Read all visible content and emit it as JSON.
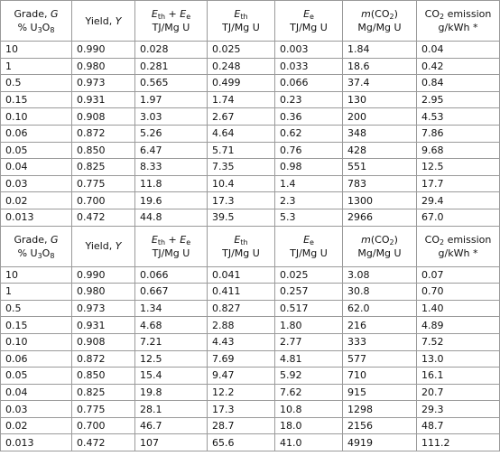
{
  "tables": [
    {
      "header": [
        {
          "lines": [
            [
              {
                "text": "Grade, "
              },
              {
                "text": "G",
                "style": "italic"
              }
            ],
            [
              {
                "text": "% U"
              },
              {
                "text": "3",
                "style": "sub"
              },
              {
                "text": "O"
              },
              {
                "text": "8",
                "style": "sub"
              }
            ]
          ]
        },
        {
          "lines": [
            [
              {
                "text": "Yield, "
              },
              {
                "text": "Y",
                "style": "italic"
              }
            ]
          ]
        },
        {
          "lines": [
            [
              {
                "text": "E",
                "style": "italic"
              },
              {
                "text": "th",
                "style": "sub"
              },
              {
                "text": " + "
              },
              {
                "text": "E",
                "style": "italic"
              },
              {
                "text": "e",
                "style": "sub"
              }
            ],
            [
              {
                "text": "TJ/Mg U"
              }
            ]
          ]
        },
        {
          "lines": [
            [
              {
                "text": "E",
                "style": "italic"
              },
              {
                "text": "th",
                "style": "sub"
              }
            ],
            [
              {
                "text": "TJ/Mg U"
              }
            ]
          ]
        },
        {
          "lines": [
            [
              {
                "text": "E",
                "style": "italic"
              },
              {
                "text": "e",
                "style": "sub"
              }
            ],
            [
              {
                "text": "TJ/Mg U"
              }
            ]
          ]
        },
        {
          "lines": [
            [
              {
                "text": "m",
                "style": "italic"
              },
              {
                "text": "(CO"
              },
              {
                "text": "2",
                "style": "sub"
              },
              {
                "text": ")"
              }
            ],
            [
              {
                "text": "Mg/Mg U"
              }
            ]
          ]
        },
        {
          "lines": [
            [
              {
                "text": "CO"
              },
              {
                "text": "2",
                "style": "sub"
              },
              {
                "text": " emission"
              }
            ],
            [
              {
                "text": "g/kWh *"
              }
            ]
          ]
        }
      ],
      "rows": [
        [
          "10",
          "0.990",
          "0.028",
          "0.025",
          "0.003",
          "1.84",
          "0.04"
        ],
        [
          "1",
          "0.980",
          "0.281",
          "0.248",
          "0.033",
          "18.6",
          "0.42"
        ],
        [
          "0.5",
          "0.973",
          "0.565",
          "0.499",
          "0.066",
          "37.4",
          "0.84"
        ],
        [
          "0.15",
          "0.931",
          "1.97",
          "1.74",
          "0.23",
          "130",
          "2.95"
        ],
        [
          "0.10",
          "0.908",
          "3.03",
          "2.67",
          "0.36",
          "200",
          "4.53"
        ],
        [
          "0.06",
          "0.872",
          "5.26",
          "4.64",
          "0.62",
          "348",
          "7.86"
        ],
        [
          "0.05",
          "0.850",
          "6.47",
          "5.71",
          "0.76",
          "428",
          "9.68"
        ],
        [
          "0.04",
          "0.825",
          "8.33",
          "7.35",
          "0.98",
          "551",
          "12.5"
        ],
        [
          "0.03",
          "0.775",
          "11.8",
          "10.4",
          "1.4",
          "783",
          "17.7"
        ],
        [
          "0.02",
          "0.700",
          "19.6",
          "17.3",
          "2.3",
          "1300",
          "29.4"
        ],
        [
          "0.013",
          "0.472",
          "44.8",
          "39.5",
          "5.3",
          "2966",
          "67.0"
        ]
      ]
    },
    {
      "header": [
        {
          "lines": [
            [
              {
                "text": "Grade, "
              },
              {
                "text": "G",
                "style": "italic"
              }
            ],
            [
              {
                "text": "% U"
              },
              {
                "text": "3",
                "style": "sub"
              },
              {
                "text": "O"
              },
              {
                "text": "8",
                "style": "sub"
              }
            ]
          ]
        },
        {
          "lines": [
            [
              {
                "text": "Yield, "
              },
              {
                "text": "Y",
                "style": "italic"
              }
            ]
          ]
        },
        {
          "lines": [
            [
              {
                "text": "E",
                "style": "italic"
              },
              {
                "text": "th",
                "style": "sub"
              },
              {
                "text": " + "
              },
              {
                "text": "E",
                "style": "italic"
              },
              {
                "text": "e",
                "style": "sub"
              }
            ],
            [
              {
                "text": "TJ/Mg U"
              }
            ]
          ]
        },
        {
          "lines": [
            [
              {
                "text": "E",
                "style": "italic"
              },
              {
                "text": "th",
                "style": "sub"
              }
            ],
            [
              {
                "text": "TJ/Mg U"
              }
            ]
          ]
        },
        {
          "lines": [
            [
              {
                "text": "E",
                "style": "italic"
              },
              {
                "text": "e",
                "style": "sub"
              }
            ],
            [
              {
                "text": "TJ/Mg U"
              }
            ]
          ]
        },
        {
          "lines": [
            [
              {
                "text": "m",
                "style": "italic"
              },
              {
                "text": "(CO"
              },
              {
                "text": "2",
                "style": "sub"
              },
              {
                "text": ")"
              }
            ],
            [
              {
                "text": "Mg/Mg U"
              }
            ]
          ]
        },
        {
          "lines": [
            [
              {
                "text": "CO"
              },
              {
                "text": "2",
                "style": "sub"
              },
              {
                "text": " emission"
              }
            ],
            [
              {
                "text": "g/kWh *"
              }
            ]
          ]
        }
      ],
      "rows": [
        [
          "10",
          "0.990",
          "0.066",
          "0.041",
          "0.025",
          "3.08",
          "0.07"
        ],
        [
          "1",
          "0.980",
          "0.667",
          "0.411",
          "0.257",
          "30.8",
          "0.70"
        ],
        [
          "0.5",
          "0.973",
          "1.34",
          "0.827",
          "0.517",
          "62.0",
          "1.40"
        ],
        [
          "0.15",
          "0.931",
          "4.68",
          "2.88",
          "1.80",
          "216",
          "4.89"
        ],
        [
          "0.10",
          "0.908",
          "7.21",
          "4.43",
          "2.77",
          "333",
          "7.52"
        ],
        [
          "0.06",
          "0.872",
          "12.5",
          "7.69",
          "4.81",
          "577",
          "13.0"
        ],
        [
          "0.05",
          "0.850",
          "15.4",
          "9.47",
          "5.92",
          "710",
          "16.1"
        ],
        [
          "0.04",
          "0.825",
          "19.8",
          "12.2",
          "7.62",
          "915",
          "20.7"
        ],
        [
          "0.03",
          "0.775",
          "28.1",
          "17.3",
          "10.8",
          "1298",
          "29.3"
        ],
        [
          "0.02",
          "0.700",
          "46.7",
          "28.7",
          "18.0",
          "2156",
          "48.7"
        ],
        [
          "0.013",
          "0.472",
          "107",
          "65.6",
          "41.0",
          "4919",
          "111.2"
        ]
      ]
    }
  ]
}
